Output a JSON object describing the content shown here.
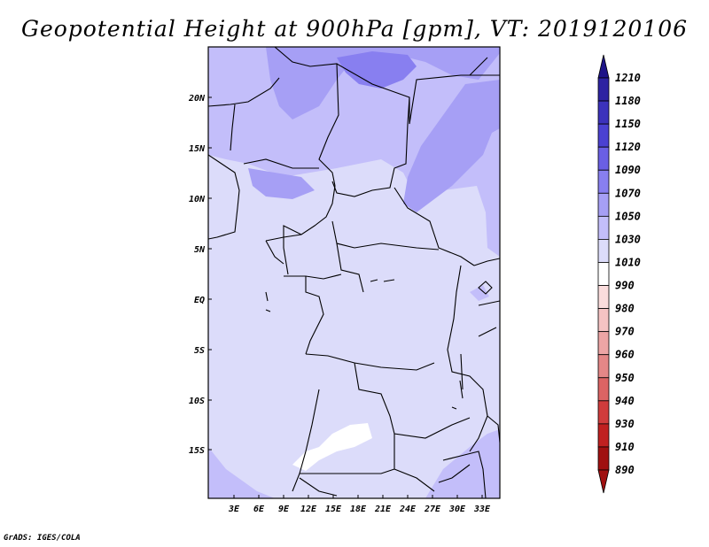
{
  "title": "Geopotential Height at 900hPa [gpm], VT: 2019120106",
  "footer": "GrADS: IGES/COLA",
  "map": {
    "lat_labels": [
      "20N",
      "15N",
      "10N",
      "5N",
      "EQ",
      "5S",
      "10S",
      "15S"
    ],
    "lon_labels": [
      "3E",
      "6E",
      "9E",
      "12E",
      "15E",
      "18E",
      "21E",
      "24E",
      "27E",
      "30E",
      "33E"
    ]
  },
  "colorbar": {
    "levels": [
      "1210",
      "1180",
      "1150",
      "1120",
      "1090",
      "1070",
      "1050",
      "1030",
      "1010",
      "990",
      "980",
      "970",
      "960",
      "950",
      "940",
      "930",
      "910",
      "890"
    ],
    "colors": [
      "#1e1488",
      "#2d23a2",
      "#3c32bc",
      "#4b41d2",
      "#6a5fe4",
      "#887ff0",
      "#a69ff5",
      "#c3befa",
      "#dcdcfa",
      "#ffffff",
      "#fadcdc",
      "#f5c3c3",
      "#eda5a5",
      "#e48787",
      "#dc6464",
      "#d03c3c",
      "#c02020",
      "#a01010"
    ]
  }
}
